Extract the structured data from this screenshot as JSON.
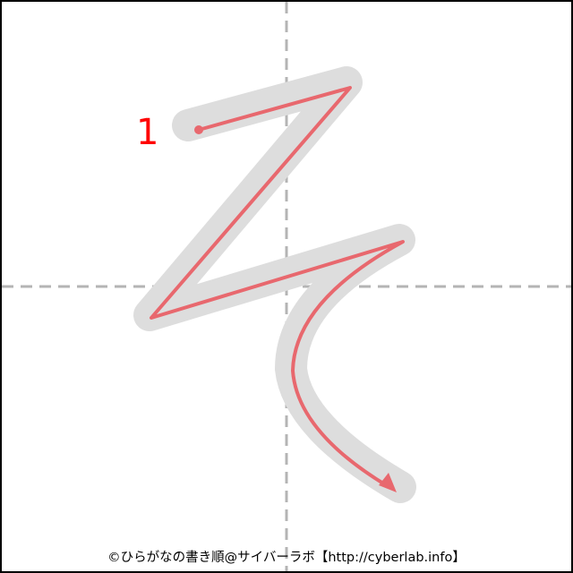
{
  "character": "そ",
  "stroke_number": "1",
  "credit": "©ひらがなの書き順@サイバーラボ【http://cyberlab.info】",
  "colors": {
    "frame": "#000000",
    "guide": "#b4b4b4",
    "shadow": "#dddddd",
    "stroke": "#e8686e",
    "stroke_number": "#ff0000"
  }
}
